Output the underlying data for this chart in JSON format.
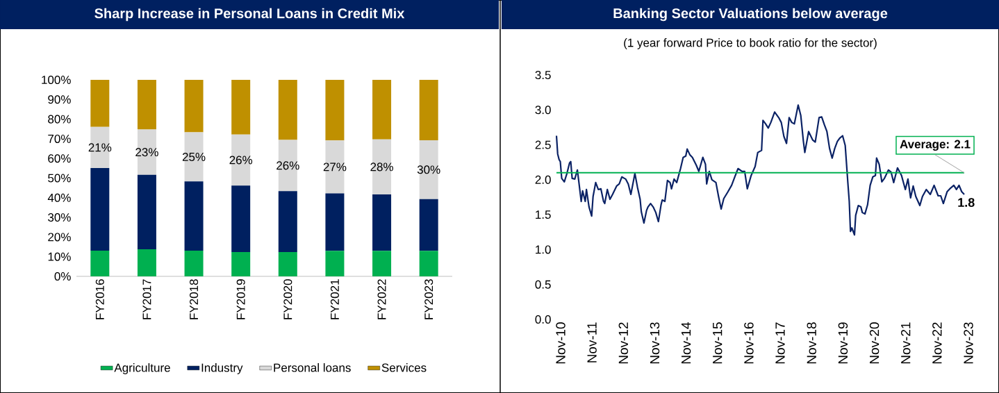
{
  "chart_data": [
    {
      "type": "bar",
      "title": "Sharp Increase in Personal Loans in Credit Mix",
      "stacked": true,
      "legend": "bottom",
      "categories": [
        "FY2016",
        "FY2017",
        "FY2018",
        "FY2019",
        "FY2020",
        "FY2021",
        "FY2022",
        "FY2023"
      ],
      "series": [
        {
          "name": "Agriculture",
          "color": "#00b050",
          "values": [
            13.1,
            13.8,
            13.1,
            12.4,
            12.4,
            13.0,
            13.0,
            13.0
          ]
        },
        {
          "name": "Industry",
          "color": "#002060",
          "values": [
            42.0,
            37.9,
            35.2,
            33.8,
            31.0,
            29.2,
            28.7,
            26.3
          ]
        },
        {
          "name": "Personal loans",
          "color": "#d9d9d9",
          "values": [
            21,
            23,
            25,
            26,
            26,
            27,
            28,
            30
          ],
          "value_labels": [
            "21%",
            "23%",
            "25%",
            "26%",
            "26%",
            "27%",
            "28%",
            "30%"
          ]
        },
        {
          "name": "Services",
          "color": "#bf9000",
          "values": [
            23.9,
            25.3,
            26.7,
            27.8,
            30.6,
            30.8,
            30.3,
            30.7
          ]
        }
      ],
      "ylim": [
        0,
        100
      ],
      "yticks": [
        {
          "value": 0,
          "label": "0%"
        },
        {
          "value": 10,
          "label": "10%"
        },
        {
          "value": 20,
          "label": "20%"
        },
        {
          "value": 30,
          "label": "30%"
        },
        {
          "value": 40,
          "label": "40%"
        },
        {
          "value": 50,
          "label": "50%"
        },
        {
          "value": 60,
          "label": "60%"
        },
        {
          "value": 70,
          "label": "70%"
        },
        {
          "value": 80,
          "label": "80%"
        },
        {
          "value": 90,
          "label": "90%"
        },
        {
          "value": 100,
          "label": "100%"
        }
      ]
    },
    {
      "type": "line",
      "title": "Banking Sector Valuations below average",
      "subtitle": "(1 year forward Price to book ratio for the sector)",
      "x": [
        "2010-11-01",
        "2010-11-15",
        "2010-12-01",
        "2010-12-15",
        "2011-01-01",
        "2011-02-01",
        "2011-03-01",
        "2011-04-01",
        "2011-04-15",
        "2011-05-01",
        "2011-06-01",
        "2011-07-01",
        "2011-07-15",
        "2011-08-15",
        "2011-09-01",
        "2011-10-01",
        "2011-10-15",
        "2011-11-15",
        "2011-12-15",
        "2012-01-01",
        "2012-02-01",
        "2012-03-01",
        "2012-04-01",
        "2012-05-01",
        "2012-05-15",
        "2012-06-15",
        "2012-07-15",
        "2012-08-15",
        "2012-10-01",
        "2012-11-01",
        "2012-12-01",
        "2013-01-15",
        "2013-02-15",
        "2013-03-15",
        "2013-05-01",
        "2013-06-01",
        "2013-07-01",
        "2013-07-15",
        "2013-08-15",
        "2013-09-15",
        "2013-10-01",
        "2013-11-01",
        "2013-12-01",
        "2014-01-01",
        "2014-02-01",
        "2014-03-01",
        "2014-03-15",
        "2014-04-15",
        "2014-05-15",
        "2014-06-15",
        "2014-07-01",
        "2014-08-01",
        "2014-09-01",
        "2014-10-15",
        "2014-11-15",
        "2014-12-15",
        "2015-01-01",
        "2015-02-01",
        "2015-03-01",
        "2015-04-15",
        "2015-05-15",
        "2015-07-01",
        "2015-08-01",
        "2015-08-15",
        "2015-09-15",
        "2015-10-15",
        "2015-12-01",
        "2016-01-01",
        "2016-02-01",
        "2016-03-01",
        "2016-04-15",
        "2016-06-01",
        "2016-07-01",
        "2016-08-15",
        "2016-10-01",
        "2016-11-01",
        "2016-12-01",
        "2017-01-01",
        "2017-01-15",
        "2017-03-01",
        "2017-04-01",
        "2017-05-15",
        "2017-06-01",
        "2017-07-01",
        "2017-08-01",
        "2017-09-01",
        "2017-10-15",
        "2017-12-01",
        "2018-01-01",
        "2018-02-01",
        "2018-03-01",
        "2018-04-01",
        "2018-05-01",
        "2018-06-01",
        "2018-07-15",
        "2018-08-15",
        "2018-09-15",
        "2018-10-01",
        "2018-11-15",
        "2019-01-01",
        "2019-02-01",
        "2019-03-15",
        "2019-04-15",
        "2019-05-15",
        "2019-06-15",
        "2019-07-15",
        "2019-08-15",
        "2019-09-15",
        "2019-10-15",
        "2019-11-15",
        "2019-12-15",
        "2020-01-15",
        "2020-02-15",
        "2020-03-01",
        "2020-03-15",
        "2020-04-01",
        "2020-05-01",
        "2020-05-15",
        "2020-06-15",
        "2020-07-15",
        "2020-08-01",
        "2020-09-01",
        "2020-10-01",
        "2020-11-01",
        "2020-12-01",
        "2021-01-01",
        "2021-01-15",
        "2021-02-15",
        "2021-03-15",
        "2021-04-15",
        "2021-06-01",
        "2021-07-01",
        "2021-08-01",
        "2021-09-15",
        "2021-11-01",
        "2021-12-15",
        "2022-01-15",
        "2022-02-15",
        "2022-03-15",
        "2022-04-15",
        "2022-06-01",
        "2022-07-01",
        "2022-08-15",
        "2022-10-01",
        "2022-11-15",
        "2023-01-01",
        "2023-02-01",
        "2023-03-01",
        "2023-04-15",
        "2023-05-15",
        "2023-07-01",
        "2023-08-01",
        "2023-09-01",
        "2023-10-01",
        "2023-11-01"
      ],
      "series": [
        {
          "color": "#0b2265",
          "values": [
            2.63,
            2.37,
            2.29,
            2.26,
            2.02,
            1.97,
            2.09,
            2.24,
            2.26,
            2.02,
            2.01,
            2.14,
            2.0,
            1.69,
            1.84,
            1.69,
            1.86,
            1.61,
            1.48,
            1.76,
            1.96,
            1.86,
            1.87,
            1.69,
            1.66,
            1.86,
            1.72,
            1.79,
            1.91,
            1.94,
            2.04,
            2.01,
            1.94,
            1.79,
            2.09,
            1.89,
            1.72,
            1.54,
            1.38,
            1.56,
            1.61,
            1.66,
            1.61,
            1.53,
            1.4,
            1.64,
            1.71,
            1.69,
            1.99,
            1.96,
            1.87,
            2.01,
            1.96,
            2.16,
            2.32,
            2.34,
            2.44,
            2.36,
            2.32,
            2.21,
            2.12,
            2.32,
            2.22,
            1.94,
            2.12,
            2.0,
            1.96,
            1.76,
            1.58,
            1.73,
            1.82,
            1.92,
            2.02,
            2.16,
            2.12,
            2.12,
            1.87,
            2.0,
            2.06,
            2.19,
            2.39,
            2.42,
            2.85,
            2.8,
            2.74,
            2.82,
            2.97,
            2.89,
            2.82,
            2.62,
            2.52,
            2.89,
            2.82,
            2.8,
            3.07,
            2.92,
            2.55,
            2.39,
            2.69,
            2.57,
            2.54,
            2.89,
            2.9,
            2.79,
            2.69,
            2.45,
            2.31,
            2.45,
            2.55,
            2.6,
            2.63,
            2.49,
            1.96,
            1.69,
            1.26,
            1.31,
            1.21,
            1.49,
            1.63,
            1.61,
            1.53,
            1.51,
            1.64,
            1.92,
            2.04,
            2.06,
            2.31,
            2.22,
            1.97,
            2.02,
            2.14,
            2.11,
            1.96,
            2.17,
            2.06,
            1.86,
            2.01,
            1.74,
            1.91,
            1.76,
            1.63,
            1.76,
            1.86,
            1.79,
            1.92,
            1.77,
            1.77,
            1.66,
            1.83,
            1.87,
            1.92,
            1.86,
            1.92,
            1.83,
            1.79
          ]
        }
      ],
      "xlim": [
        "2010-11-01",
        "2023-11-01"
      ],
      "xticks": [
        {
          "value": "2010-11",
          "label": "Nov-10"
        },
        {
          "value": "2011-11",
          "label": "Nov-11"
        },
        {
          "value": "2012-11",
          "label": "Nov-12"
        },
        {
          "value": "2013-11",
          "label": "Nov-13"
        },
        {
          "value": "2014-11",
          "label": "Nov-14"
        },
        {
          "value": "2015-11",
          "label": "Nov-15"
        },
        {
          "value": "2016-11",
          "label": "Nov-16"
        },
        {
          "value": "2017-11",
          "label": "Nov-17"
        },
        {
          "value": "2018-11",
          "label": "Nov-18"
        },
        {
          "value": "2019-11",
          "label": "Nov-19"
        },
        {
          "value": "2020-11",
          "label": "Nov-20"
        },
        {
          "value": "2021-11",
          "label": "Nov-21"
        },
        {
          "value": "2022-11",
          "label": "Nov-22"
        },
        {
          "value": "2023-11",
          "label": "Nov-23"
        }
      ],
      "ylim": [
        0,
        3.5
      ],
      "yticks": [
        {
          "value": 0,
          "label": "0.0"
        },
        {
          "value": 0.5,
          "label": "0.5"
        },
        {
          "value": 1,
          "label": "1.0"
        },
        {
          "value": 1.5,
          "label": "1.5"
        },
        {
          "value": 2,
          "label": "2.0"
        },
        {
          "value": 2.5,
          "label": "2.5"
        },
        {
          "value": 3,
          "label": "3.0"
        },
        {
          "value": 3.5,
          "label": "3.5"
        }
      ],
      "ref_lines": [
        {
          "axis": "y",
          "value": 2.1,
          "label": "Average: 2.1",
          "color": "#00b050"
        }
      ],
      "annotations": [
        {
          "text": "1.8",
          "x": "2023-11-01",
          "y": 1.8
        }
      ]
    }
  ]
}
